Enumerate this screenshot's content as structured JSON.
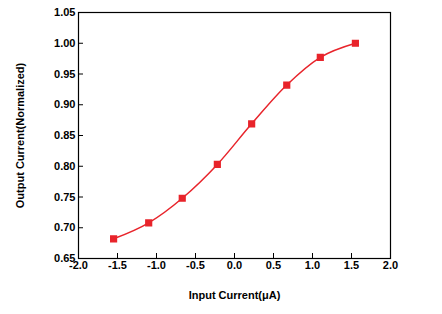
{
  "chart_data": {
    "type": "line",
    "x_label": "Input Current(μA)",
    "y_label": "Output Current(Normalized)",
    "x": [
      -1.55,
      -1.1,
      -0.67,
      -0.22,
      0.22,
      0.67,
      1.1,
      1.55
    ],
    "series": [
      {
        "name": "Output Current",
        "color": "#e8242b",
        "marker": "square",
        "line_style": "solid",
        "values": [
          0.682,
          0.708,
          0.748,
          0.803,
          0.869,
          0.932,
          0.977,
          1.0
        ]
      }
    ],
    "xlim": [
      -2.0,
      2.0
    ],
    "xticks": [
      {
        "value": -2,
        "label": "-2.0"
      },
      -1.5,
      {
        "value": -1,
        "label": "-1.0"
      },
      -0.5,
      {
        "value": 0,
        "label": "0.0"
      },
      0.5,
      {
        "value": 1,
        "label": "1.0"
      },
      1.5,
      {
        "value": 2,
        "label": "2.0"
      }
    ],
    "ylim": [
      0.65,
      1.05
    ],
    "yticks": [
      0.65,
      {
        "value": 0.7,
        "label": "0.70"
      },
      0.75,
      {
        "value": 0.8,
        "label": "0.80"
      },
      0.85,
      {
        "value": 0.9,
        "label": "0.90"
      },
      0.95,
      {
        "value": 1.0,
        "label": "1.00"
      },
      1.05
    ],
    "grid": false
  }
}
